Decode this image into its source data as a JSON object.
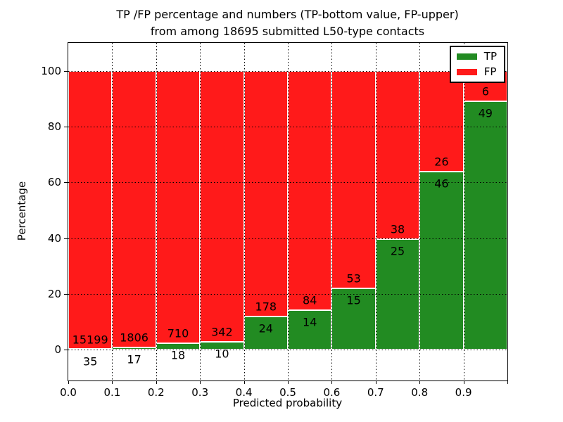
{
  "title": {
    "line1": "TP /FP percentage and numbers (TP-bottom value, FP-upper)",
    "line2": "from among 18695 submitted L50-type contacts"
  },
  "chart_data": {
    "type": "bar",
    "stacked": true,
    "title": "TP /FP percentage and numbers (TP-bottom value, FP-upper)\nfrom among 18695 submitted L50-type contacts",
    "xlabel": "Predicted probability",
    "ylabel": "Percentage",
    "total_submitted_contacts": 18695,
    "x_tick_labels": [
      "0.0",
      "0.1",
      "0.2",
      "0.3",
      "0.4",
      "0.5",
      "0.6",
      "0.7",
      "0.8",
      "0.9"
    ],
    "y_ticks": [
      0,
      20,
      40,
      60,
      80,
      100
    ],
    "y_tick_labels": [
      "0",
      "20",
      "40",
      "60",
      "80",
      "100"
    ],
    "xlim": [
      0.0,
      1.0
    ],
    "ylim": [
      -11,
      110
    ],
    "bin_width": 0.1,
    "grid_style": "dotted",
    "legend_position": "upper-right",
    "series": [
      {
        "name": "TP",
        "color": "#228b22",
        "counts": [
          35,
          17,
          18,
          10,
          24,
          14,
          15,
          25,
          46,
          49
        ]
      },
      {
        "name": "FP",
        "color": "#ff1a1a",
        "counts": [
          15199,
          1806,
          710,
          342,
          178,
          84,
          53,
          38,
          26,
          6
        ]
      }
    ],
    "bins": [
      {
        "range_start": 0.0,
        "tp_count": 35,
        "fp_count": 15199,
        "tp_pct": 0.23,
        "fp_pct": 99.77
      },
      {
        "range_start": 0.1,
        "tp_count": 17,
        "fp_count": 1806,
        "tp_pct": 0.93,
        "fp_pct": 99.07
      },
      {
        "range_start": 0.2,
        "tp_count": 18,
        "fp_count": 710,
        "tp_pct": 2.47,
        "fp_pct": 97.53
      },
      {
        "range_start": 0.3,
        "tp_count": 10,
        "fp_count": 342,
        "tp_pct": 2.84,
        "fp_pct": 97.16
      },
      {
        "range_start": 0.4,
        "tp_count": 24,
        "fp_count": 178,
        "tp_pct": 11.88,
        "fp_pct": 88.12
      },
      {
        "range_start": 0.5,
        "tp_count": 14,
        "fp_count": 84,
        "tp_pct": 14.29,
        "fp_pct": 85.71
      },
      {
        "range_start": 0.6,
        "tp_count": 15,
        "fp_count": 53,
        "tp_pct": 22.06,
        "fp_pct": 77.94
      },
      {
        "range_start": 0.7,
        "tp_count": 25,
        "fp_count": 38,
        "tp_pct": 39.68,
        "fp_pct": 60.32
      },
      {
        "range_start": 0.8,
        "tp_count": 46,
        "fp_count": 26,
        "tp_pct": 63.89,
        "fp_pct": 36.11
      },
      {
        "range_start": 0.9,
        "tp_count": 49,
        "fp_count": 6,
        "tp_pct": 89.09,
        "fp_pct": 10.91
      }
    ]
  }
}
